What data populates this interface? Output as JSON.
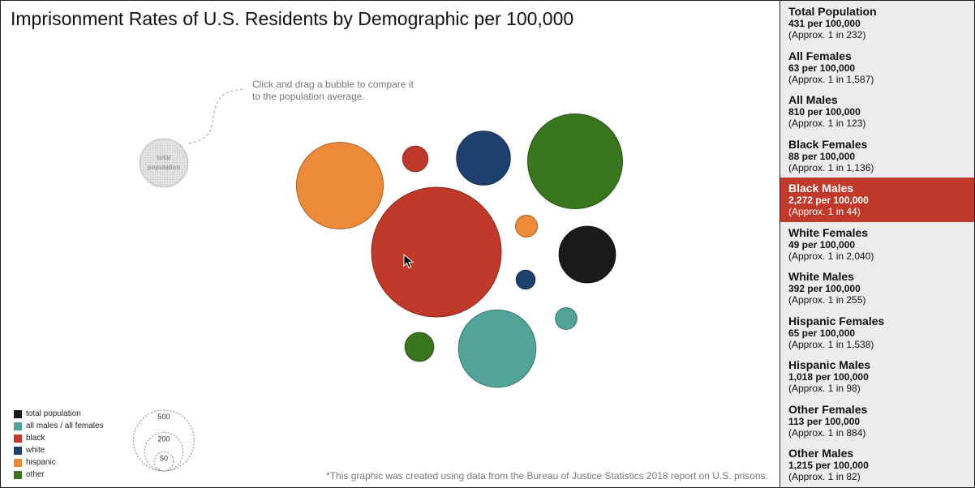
{
  "title": "Imprisonment Rates of U.S. Residents by Demographic per 100,000",
  "hint": "Click and drag a bubble to compare it to the population average.",
  "total_bubble_label": [
    "total",
    "population"
  ],
  "footnote": "*This graphic was created using data from the Bureau of Justice Statistics 2018 report on U.S. prisons.",
  "colors": {
    "total": "#1a1a1a",
    "all": "#52a39a",
    "black": "#c0392b",
    "white": "#1f3f6e",
    "hispanic": "#ec8a3a",
    "other": "#3a761f",
    "ghost": "#d9d9d9"
  },
  "legend": [
    {
      "label": "total population",
      "color": "#1a1a1a"
    },
    {
      "label": "all males / all females",
      "color": "#52a39a"
    },
    {
      "label": "black",
      "color": "#c0392b"
    },
    {
      "label": "white",
      "color": "#1f3f6e"
    },
    {
      "label": "hispanic",
      "color": "#ec8a3a"
    },
    {
      "label": "other",
      "color": "#3a761f"
    }
  ],
  "size_legend": [
    "500",
    "200",
    "50"
  ],
  "sidebar": [
    {
      "name": "Total Population",
      "rate": "431 per 100,000",
      "approx": "(Approx. 1 in 232)",
      "active": false
    },
    {
      "name": "All Females",
      "rate": "63 per 100,000",
      "approx": "(Approx. 1 in 1,587)",
      "active": false
    },
    {
      "name": "All Males",
      "rate": "810 per 100,000",
      "approx": "(Approx. 1 in 123)",
      "active": false
    },
    {
      "name": "Black Females",
      "rate": "88 per 100,000",
      "approx": "(Approx. 1 in 1,136)",
      "active": false
    },
    {
      "name": "Black Males",
      "rate": "2,272 per 100,000",
      "approx": "(Approx. 1 in 44)",
      "active": true
    },
    {
      "name": "White Females",
      "rate": "49 per 100,000",
      "approx": "(Approx. 1 in 2,040)",
      "active": false
    },
    {
      "name": "White Males",
      "rate": "392 per 100,000",
      "approx": "(Approx. 1 in 255)",
      "active": false
    },
    {
      "name": "Hispanic Females",
      "rate": "65 per 100,000",
      "approx": "(Approx. 1 in 1,538)",
      "active": false
    },
    {
      "name": "Hispanic Males",
      "rate": "1,018 per 100,000",
      "approx": "(Approx. 1 in 98)",
      "active": false
    },
    {
      "name": "Other Females",
      "rate": "113 per 100,000",
      "approx": "(Approx. 1 in 884)",
      "active": false
    },
    {
      "name": "Other Males",
      "rate": "1,215 per 100,000",
      "approx": "(Approx. 1 in 82)",
      "active": false
    }
  ],
  "chart_data": {
    "type": "bubble",
    "unit": "per 100,000",
    "points": [
      {
        "name": "Total Population",
        "group": "total",
        "value": 431
      },
      {
        "name": "All Females",
        "group": "all",
        "value": 63
      },
      {
        "name": "All Males",
        "group": "all",
        "value": 810
      },
      {
        "name": "Black Females",
        "group": "black",
        "value": 88
      },
      {
        "name": "Black Males",
        "group": "black",
        "value": 2272
      },
      {
        "name": "White Females",
        "group": "white",
        "value": 49
      },
      {
        "name": "White Males",
        "group": "white",
        "value": 392
      },
      {
        "name": "Hispanic Females",
        "group": "hispanic",
        "value": 65
      },
      {
        "name": "Hispanic Males",
        "group": "hispanic",
        "value": 1018
      },
      {
        "name": "Other Females",
        "group": "other",
        "value": 113
      },
      {
        "name": "Other Males",
        "group": "other",
        "value": 1215
      }
    ]
  }
}
